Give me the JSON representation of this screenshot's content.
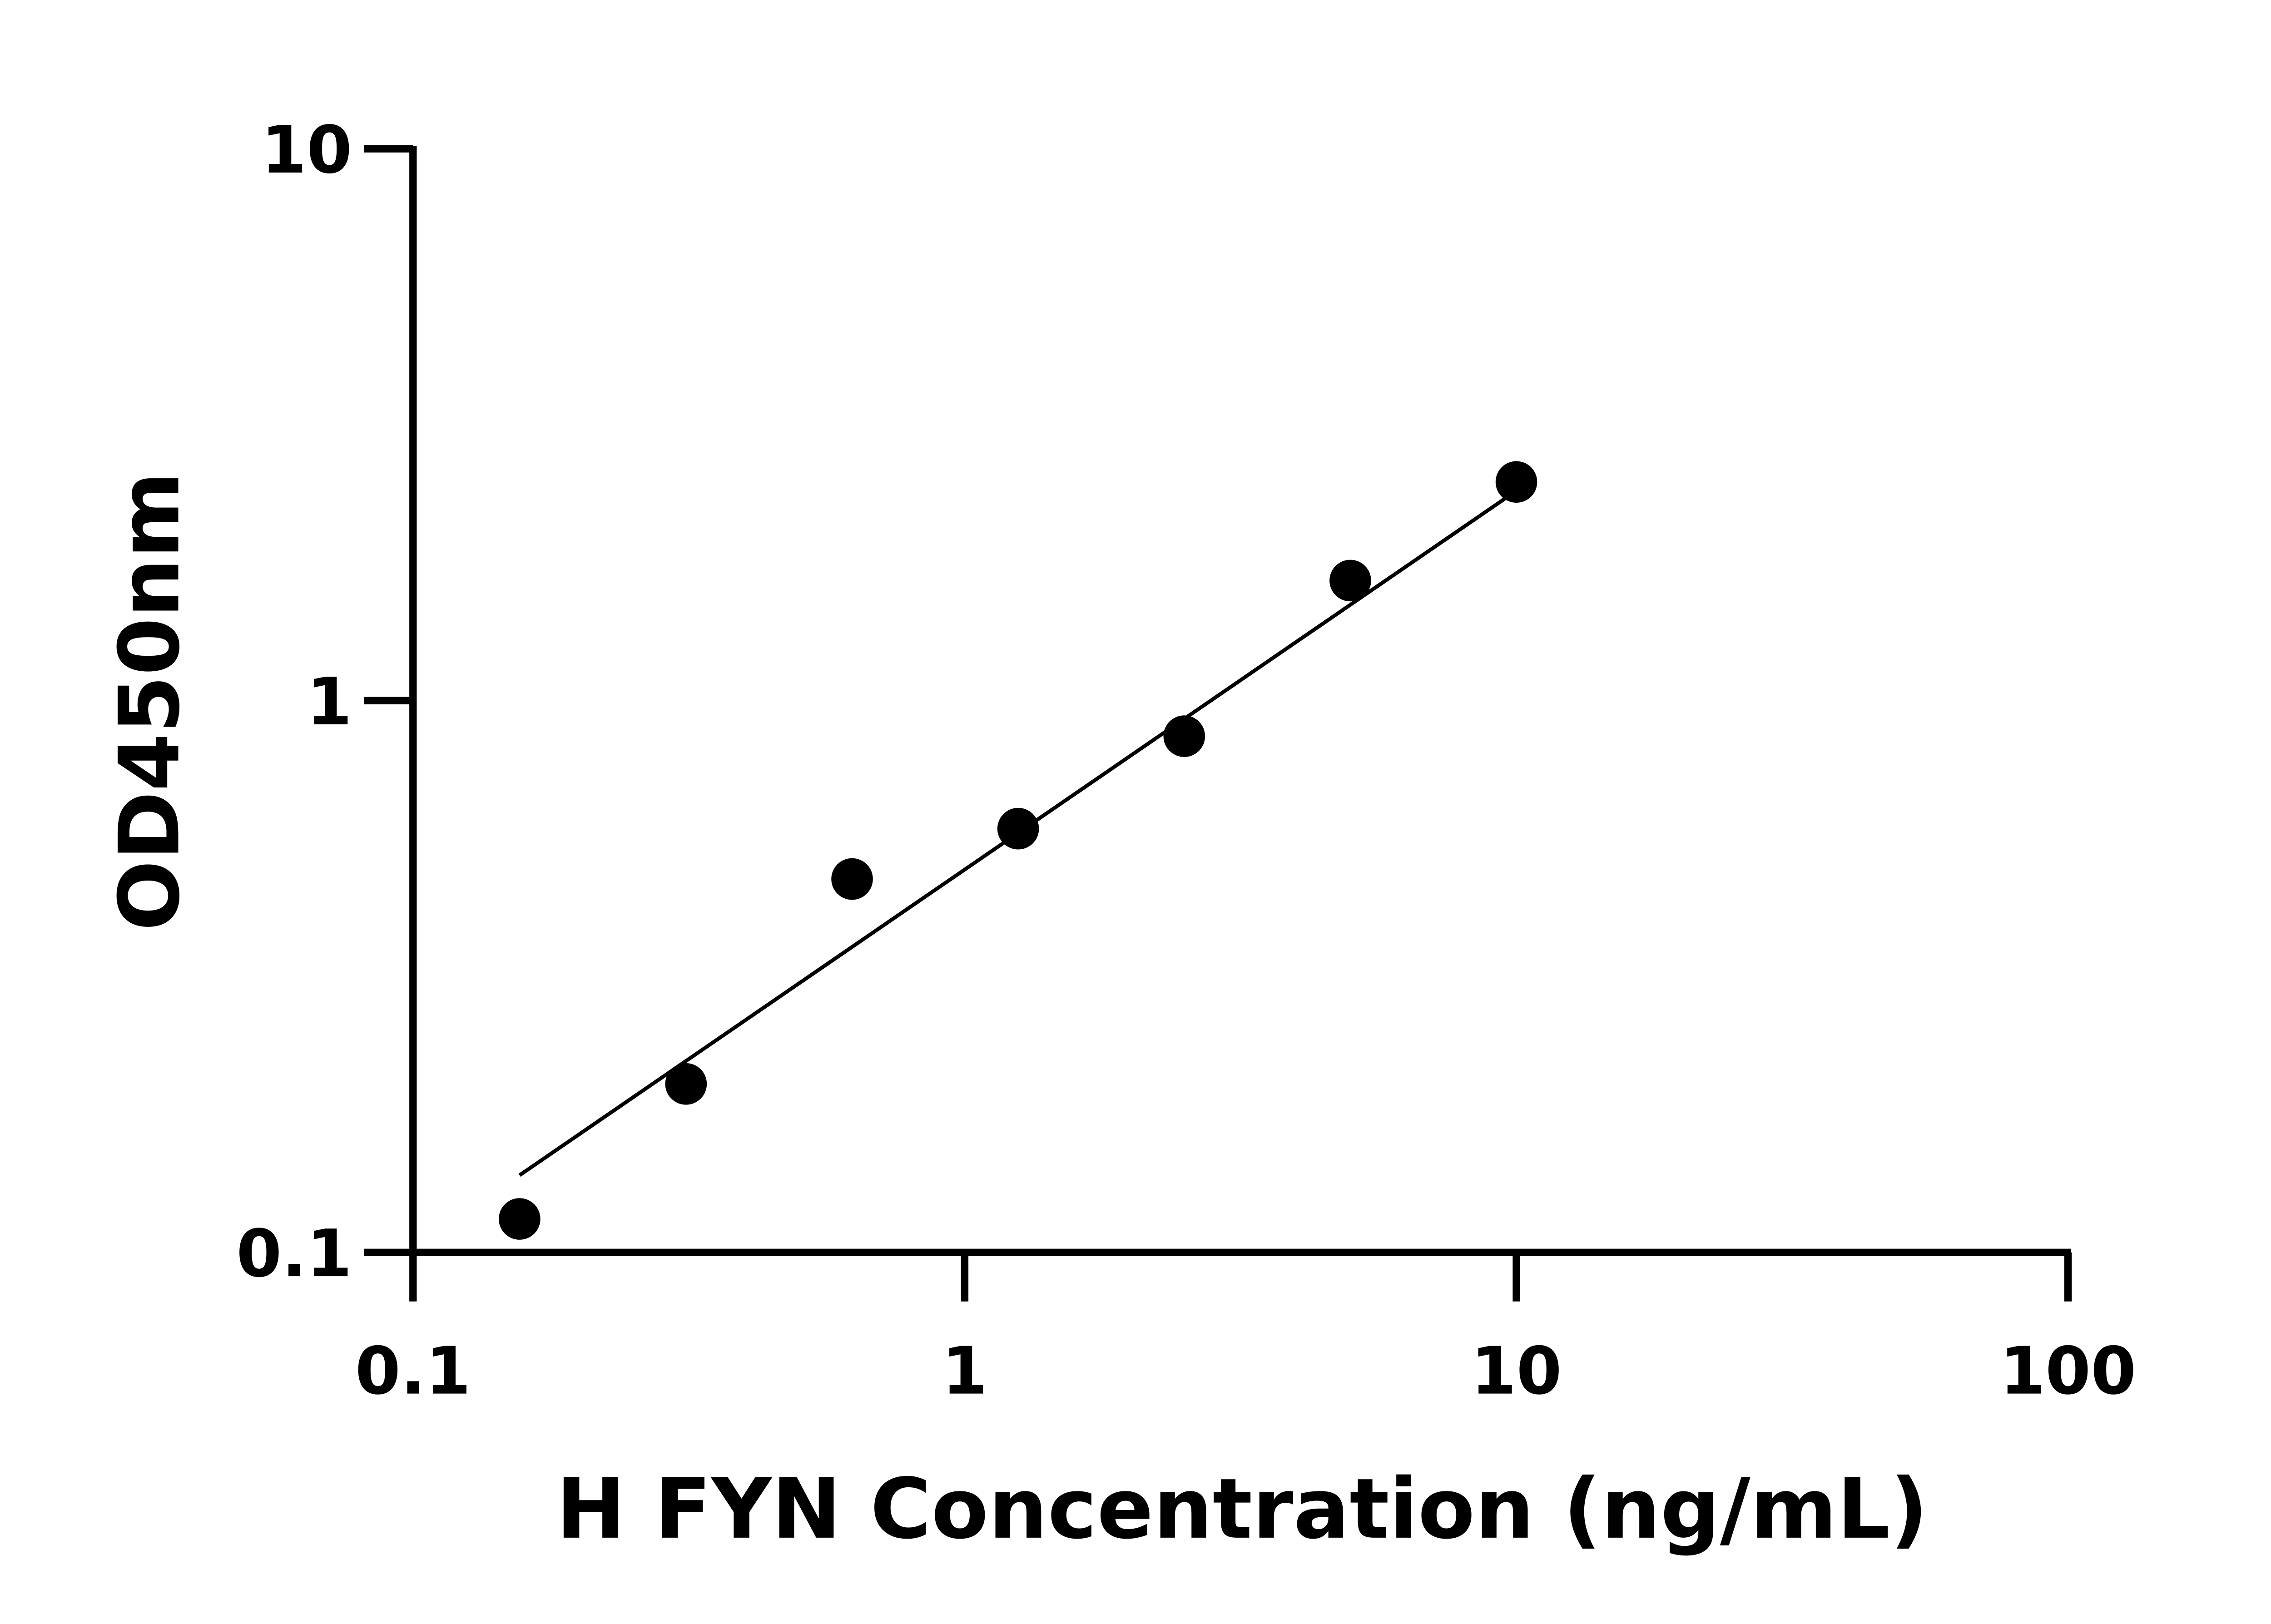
{
  "chart_data": {
    "type": "scatter",
    "title": "",
    "xlabel": "H FYN Concentration (ng/mL)",
    "ylabel": "OD450nm",
    "x_scale": "log",
    "y_scale": "log",
    "xlim": [
      0.1,
      100
    ],
    "ylim": [
      0.1,
      10
    ],
    "x_ticks": [
      "0.1",
      "1",
      "10",
      "100"
    ],
    "y_ticks": [
      "0.1",
      "1",
      "10"
    ],
    "grid": false,
    "legend": "none",
    "series": [
      {
        "x": [
          0.156,
          0.3125,
          0.625,
          1.25,
          2.5,
          5,
          10
        ],
        "y": [
          0.115,
          0.202,
          0.475,
          0.586,
          0.862,
          1.65,
          2.49
        ],
        "color": "#000000"
      }
    ],
    "fit_line": {
      "x": [
        0.156,
        10
      ],
      "y": [
        0.138,
        2.4
      ],
      "color": "#000000"
    }
  }
}
